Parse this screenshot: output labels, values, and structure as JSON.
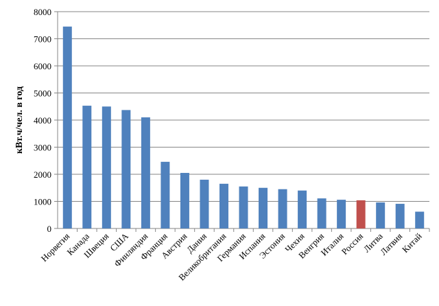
{
  "chart_data": {
    "type": "bar",
    "y_label": "кВт.ч/чел. в год",
    "categories": [
      "Норвегия",
      "Канада",
      "Швеция",
      "США",
      "Финляндия",
      "Франция",
      "Австрия",
      "Дания",
      "Великобритания",
      "Германия",
      "Испания",
      "Эстония",
      "Чехия",
      "Венгрия",
      "Италия",
      "Россия",
      "Литва",
      "Латвия",
      "Китай"
    ],
    "values": [
      7450,
      4530,
      4500,
      4370,
      4100,
      2460,
      2050,
      1800,
      1650,
      1550,
      1500,
      1450,
      1400,
      1110,
      1060,
      1040,
      960,
      910,
      620
    ],
    "colors": [
      "#4f81bd",
      "#4f81bd",
      "#4f81bd",
      "#4f81bd",
      "#4f81bd",
      "#4f81bd",
      "#4f81bd",
      "#4f81bd",
      "#4f81bd",
      "#4f81bd",
      "#4f81bd",
      "#4f81bd",
      "#4f81bd",
      "#4f81bd",
      "#4f81bd",
      "#c0504d",
      "#4f81bd",
      "#4f81bd",
      "#4f81bd"
    ],
    "ylim": [
      0,
      8000
    ],
    "yticks": [
      0,
      1000,
      2000,
      3000,
      4000,
      5000,
      6000,
      7000,
      8000
    ],
    "grid": true
  }
}
